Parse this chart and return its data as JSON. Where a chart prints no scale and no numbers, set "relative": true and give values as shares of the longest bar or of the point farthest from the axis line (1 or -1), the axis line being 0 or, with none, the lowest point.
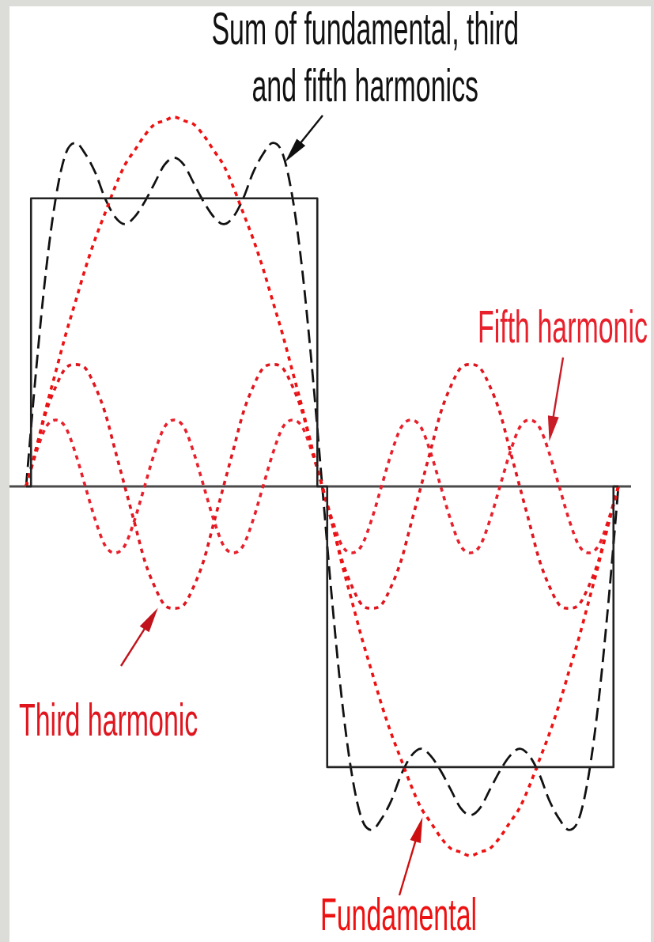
{
  "chart_data": {
    "type": "line",
    "relative": true,
    "legend": false,
    "marker": "none",
    "categories": [
      null,
      null,
      null,
      null,
      null,
      null,
      null,
      null,
      null,
      null,
      null,
      null,
      null,
      null,
      null,
      null,
      null,
      null,
      null,
      null,
      null,
      null,
      null,
      null,
      null,
      null,
      null,
      null,
      null,
      null,
      null,
      null,
      null,
      null,
      null,
      null,
      null,
      null,
      null,
      null,
      null,
      null,
      null,
      null,
      null,
      null,
      null,
      null,
      null,
      null,
      null,
      null,
      null,
      null,
      null,
      null,
      null,
      null,
      null,
      null,
      null
    ],
    "series": [
      {
        "type": "step",
        "color": "#222222",
        "line_style": "solid",
        "values": [
          0,
          0.78,
          0.78,
          0.78,
          0.78,
          0.78,
          0.78,
          0.78,
          0.78,
          0.78,
          0.78,
          0.78,
          0.78,
          0.78,
          0.78,
          0.78,
          0.78,
          0.78,
          0.78,
          0.78,
          0.78,
          0.78,
          0.78,
          0.78,
          0.78,
          0.78,
          0.78,
          0.78,
          0.78,
          0.78,
          0,
          -0.76,
          -0.76,
          -0.76,
          -0.76,
          -0.76,
          -0.76,
          -0.76,
          -0.76,
          -0.76,
          -0.76,
          -0.76,
          -0.76,
          -0.76,
          -0.76,
          -0.76,
          -0.76,
          -0.76,
          -0.76,
          -0.76,
          -0.76,
          -0.76,
          -0.76,
          -0.76,
          -0.76,
          -0.76,
          -0.76,
          -0.76,
          -0.76,
          -0.76,
          0
        ]
      },
      {
        "name": "Fundamental",
        "color": "#ee1111",
        "line_style": "dotted",
        "values": [
          0,
          0.1,
          0.21,
          0.31,
          0.41,
          0.5,
          0.59,
          0.67,
          0.74,
          0.81,
          0.87,
          0.91,
          0.95,
          0.98,
          0.99,
          1,
          0.99,
          0.98,
          0.95,
          0.91,
          0.87,
          0.81,
          0.74,
          0.67,
          0.59,
          0.5,
          0.41,
          0.31,
          0.21,
          0.1,
          0,
          -0.1,
          -0.21,
          -0.31,
          -0.41,
          -0.5,
          -0.59,
          -0.67,
          -0.74,
          -0.81,
          -0.87,
          -0.91,
          -0.95,
          -0.98,
          -0.99,
          -1,
          -0.99,
          -0.98,
          -0.95,
          -0.91,
          -0.87,
          -0.81,
          -0.74,
          -0.67,
          -0.59,
          -0.5,
          -0.41,
          -0.31,
          -0.21,
          -0.1,
          0
        ]
      },
      {
        "name": "Third harmonic",
        "color": "#e0161f",
        "line_style": "dotted",
        "values": [
          0,
          0.1,
          0.2,
          0.27,
          0.32,
          0.33,
          0.32,
          0.27,
          0.2,
          0.1,
          0,
          -0.1,
          -0.2,
          -0.27,
          -0.32,
          -0.33,
          -0.32,
          -0.27,
          -0.2,
          -0.1,
          0,
          0.1,
          0.2,
          0.27,
          0.32,
          0.33,
          0.32,
          0.27,
          0.2,
          0.1,
          0,
          -0.1,
          -0.2,
          -0.27,
          -0.32,
          -0.33,
          -0.32,
          -0.27,
          -0.2,
          -0.1,
          0,
          0.1,
          0.2,
          0.27,
          0.32,
          0.33,
          0.32,
          0.27,
          0.2,
          0.1,
          0,
          -0.1,
          -0.2,
          -0.27,
          -0.32,
          -0.33,
          -0.32,
          -0.27,
          -0.2,
          -0.1,
          0
        ]
      },
      {
        "name": "Fifth harmonic",
        "color": "#e8202c",
        "line_style": "dotted",
        "values": [
          0,
          0.09,
          0.16,
          0.18,
          0.16,
          0.09,
          0,
          -0.09,
          -0.16,
          -0.18,
          -0.16,
          -0.09,
          0,
          0.09,
          0.16,
          0.18,
          0.16,
          0.09,
          0,
          -0.09,
          -0.16,
          -0.18,
          -0.16,
          -0.09,
          0,
          0.09,
          0.16,
          0.18,
          0.16,
          0.09,
          0,
          -0.09,
          -0.16,
          -0.18,
          -0.16,
          -0.09,
          0,
          0.09,
          0.16,
          0.18,
          0.16,
          0.09,
          0,
          -0.09,
          -0.16,
          -0.18,
          -0.16,
          -0.09,
          0,
          0.09,
          0.16,
          0.18,
          0.16,
          0.09,
          0,
          -0.09,
          -0.16,
          -0.18,
          -0.16,
          -0.09,
          0
        ]
      },
      {
        "name": "Sum of fundamental, third and fifth harmonics",
        "color": "#111111",
        "line_style": "dashed",
        "values": [
          0,
          0.31,
          0.58,
          0.78,
          0.9,
          0.93,
          0.9,
          0.85,
          0.78,
          0.73,
          0.71,
          0.73,
          0.77,
          0.82,
          0.87,
          0.89,
          0.87,
          0.82,
          0.77,
          0.73,
          0.71,
          0.73,
          0.78,
          0.85,
          0.9,
          0.93,
          0.9,
          0.78,
          0.58,
          0.31,
          0,
          -0.31,
          -0.58,
          -0.78,
          -0.9,
          -0.93,
          -0.9,
          -0.85,
          -0.78,
          -0.73,
          -0.71,
          -0.73,
          -0.77,
          -0.82,
          -0.87,
          -0.89,
          -0.87,
          -0.82,
          -0.77,
          -0.73,
          -0.71,
          -0.73,
          -0.78,
          -0.85,
          -0.9,
          -0.93,
          -0.9,
          -0.78,
          -0.58,
          -0.31,
          0
        ]
      }
    ]
  }
}
